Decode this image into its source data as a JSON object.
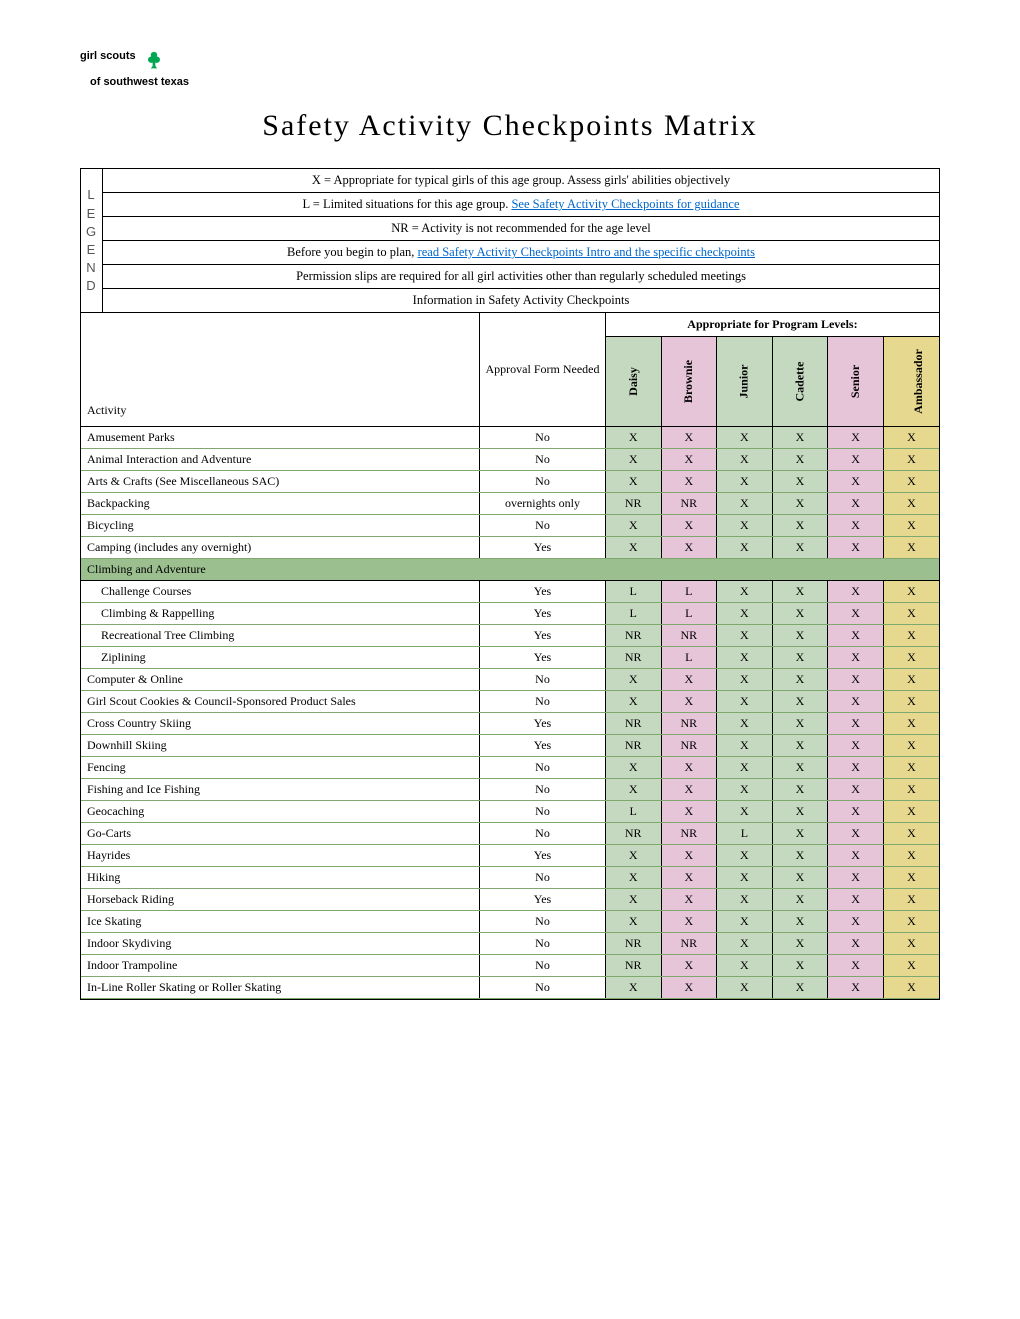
{
  "logo": {
    "line1": "girl scouts",
    "line2": "of southwest texas"
  },
  "title": "Safety Activity Checkpoints Matrix",
  "legend_side_letters": [
    "L",
    "E",
    "G",
    "E",
    "N",
    "D"
  ],
  "legend": [
    {
      "prefix": "X = Appropriate for typical girls of this age group. Assess girls' abilities objectively",
      "link": ""
    },
    {
      "prefix": "L = Limited situations for this age group. ",
      "link": "See Safety Activity Checkpoints for guidance"
    },
    {
      "prefix": "NR = Activity is not recommended for the age level",
      "link": ""
    },
    {
      "prefix": "Before you begin to plan, ",
      "link": "read Safety Activity Checkpoints Intro and the specific checkpoints"
    },
    {
      "prefix": "Permission slips are required for all girl activities other than regularly scheduled meetings",
      "link": ""
    },
    {
      "prefix": "Information in Safety Activity Checkpoints",
      "link": ""
    }
  ],
  "headers": {
    "activity": "Activity",
    "approval": "Approval Form Needed",
    "appropriate": "Appropriate for Program Levels:",
    "levels": [
      {
        "label": "Daisy",
        "bg": "#c5d9c0"
      },
      {
        "label": "Brownie",
        "bg": "#e6c5d9"
      },
      {
        "label": "Junior",
        "bg": "#c5d9c0"
      },
      {
        "label": "Cadette",
        "bg": "#c5d9c0"
      },
      {
        "label": "Senior",
        "bg": "#e6c5d9"
      },
      {
        "label": "Ambassador",
        "bg": "#e6d98f"
      }
    ]
  },
  "colors": {
    "daisy": "#c5d9c0",
    "brownie": "#e6c5d9",
    "junior": "#c5d9c0",
    "cadette": "#c5d9c0",
    "senior": "#e6c5d9",
    "ambassador": "#e6d98f",
    "section_bg": "#9bbf8f",
    "row_underline": "#7fa86f"
  },
  "rows": [
    {
      "type": "data",
      "activity": "Amusement Parks",
      "approval": "No",
      "cells": [
        "X",
        "X",
        "X",
        "X",
        "X",
        "X"
      ]
    },
    {
      "type": "data",
      "activity": "Animal Interaction and Adventure",
      "approval": "No",
      "cells": [
        "X",
        "X",
        "X",
        "X",
        "X",
        "X"
      ]
    },
    {
      "type": "data",
      "activity": "Arts & Crafts (See Miscellaneous SAC)",
      "approval": "No",
      "cells": [
        "X",
        "X",
        "X",
        "X",
        "X",
        "X"
      ]
    },
    {
      "type": "data",
      "activity": "Backpacking",
      "approval": "overnights only",
      "cells": [
        "NR",
        "NR",
        "X",
        "X",
        "X",
        "X"
      ]
    },
    {
      "type": "data",
      "activity": "Bicycling",
      "approval": "No",
      "cells": [
        "X",
        "X",
        "X",
        "X",
        "X",
        "X"
      ]
    },
    {
      "type": "data",
      "activity": "Camping (includes any overnight)",
      "approval": "Yes",
      "cells": [
        "X",
        "X",
        "X",
        "X",
        "X",
        "X"
      ]
    },
    {
      "type": "section",
      "activity": "Climbing and Adventure"
    },
    {
      "type": "data",
      "indent": true,
      "activity": "Challenge Courses",
      "approval": "Yes",
      "cells": [
        "L",
        "L",
        "X",
        "X",
        "X",
        "X"
      ]
    },
    {
      "type": "data",
      "indent": true,
      "activity": "Climbing & Rappelling",
      "approval": "Yes",
      "cells": [
        "L",
        "L",
        "X",
        "X",
        "X",
        "X"
      ]
    },
    {
      "type": "data",
      "indent": true,
      "activity": "Recreational Tree Climbing",
      "approval": "Yes",
      "cells": [
        "NR",
        "NR",
        "X",
        "X",
        "X",
        "X"
      ]
    },
    {
      "type": "data",
      "indent": true,
      "activity": "Ziplining",
      "approval": "Yes",
      "cells": [
        "NR",
        "L",
        "X",
        "X",
        "X",
        "X"
      ]
    },
    {
      "type": "data",
      "activity": "Computer & Online",
      "approval": "No",
      "cells": [
        "X",
        "X",
        "X",
        "X",
        "X",
        "X"
      ]
    },
    {
      "type": "data",
      "activity": "Girl Scout Cookies & Council-Sponsored Product Sales",
      "approval": "No",
      "cells": [
        "X",
        "X",
        "X",
        "X",
        "X",
        "X"
      ]
    },
    {
      "type": "data",
      "activity": "Cross Country Skiing",
      "approval": "Yes",
      "cells": [
        "NR",
        "NR",
        "X",
        "X",
        "X",
        "X"
      ]
    },
    {
      "type": "data",
      "activity": "Downhill Skiing",
      "approval": "Yes",
      "cells": [
        "NR",
        "NR",
        "X",
        "X",
        "X",
        "X"
      ]
    },
    {
      "type": "data",
      "activity": "Fencing",
      "approval": "No",
      "cells": [
        "X",
        "X",
        "X",
        "X",
        "X",
        "X"
      ]
    },
    {
      "type": "data",
      "activity": "Fishing and Ice Fishing",
      "approval": "No",
      "cells": [
        "X",
        "X",
        "X",
        "X",
        "X",
        "X"
      ]
    },
    {
      "type": "data",
      "activity": "Geocaching",
      "approval": "No",
      "cells": [
        "L",
        "X",
        "X",
        "X",
        "X",
        "X"
      ]
    },
    {
      "type": "data",
      "activity": "Go-Carts",
      "approval": "No",
      "cells": [
        "NR",
        "NR",
        "L",
        "X",
        "X",
        "X"
      ]
    },
    {
      "type": "data",
      "activity": "Hayrides",
      "approval": "Yes",
      "cells": [
        "X",
        "X",
        "X",
        "X",
        "X",
        "X"
      ]
    },
    {
      "type": "data",
      "activity": "Hiking",
      "approval": "No",
      "cells": [
        "X",
        "X",
        "X",
        "X",
        "X",
        "X"
      ]
    },
    {
      "type": "data",
      "activity": "Horseback Riding",
      "approval": "Yes",
      "cells": [
        "X",
        "X",
        "X",
        "X",
        "X",
        "X"
      ]
    },
    {
      "type": "data",
      "activity": "Ice Skating",
      "approval": "No",
      "cells": [
        "X",
        "X",
        "X",
        "X",
        "X",
        "X"
      ]
    },
    {
      "type": "data",
      "activity": "Indoor Skydiving",
      "approval": "No",
      "cells": [
        "NR",
        "NR",
        "X",
        "X",
        "X",
        "X"
      ]
    },
    {
      "type": "data",
      "activity": "Indoor Trampoline",
      "approval": "No",
      "cells": [
        "NR",
        "X",
        "X",
        "X",
        "X",
        "X"
      ]
    },
    {
      "type": "data",
      "activity": "In-Line Roller Skating or Roller Skating",
      "approval": "No",
      "cells": [
        "X",
        "X",
        "X",
        "X",
        "X",
        "X"
      ]
    }
  ]
}
